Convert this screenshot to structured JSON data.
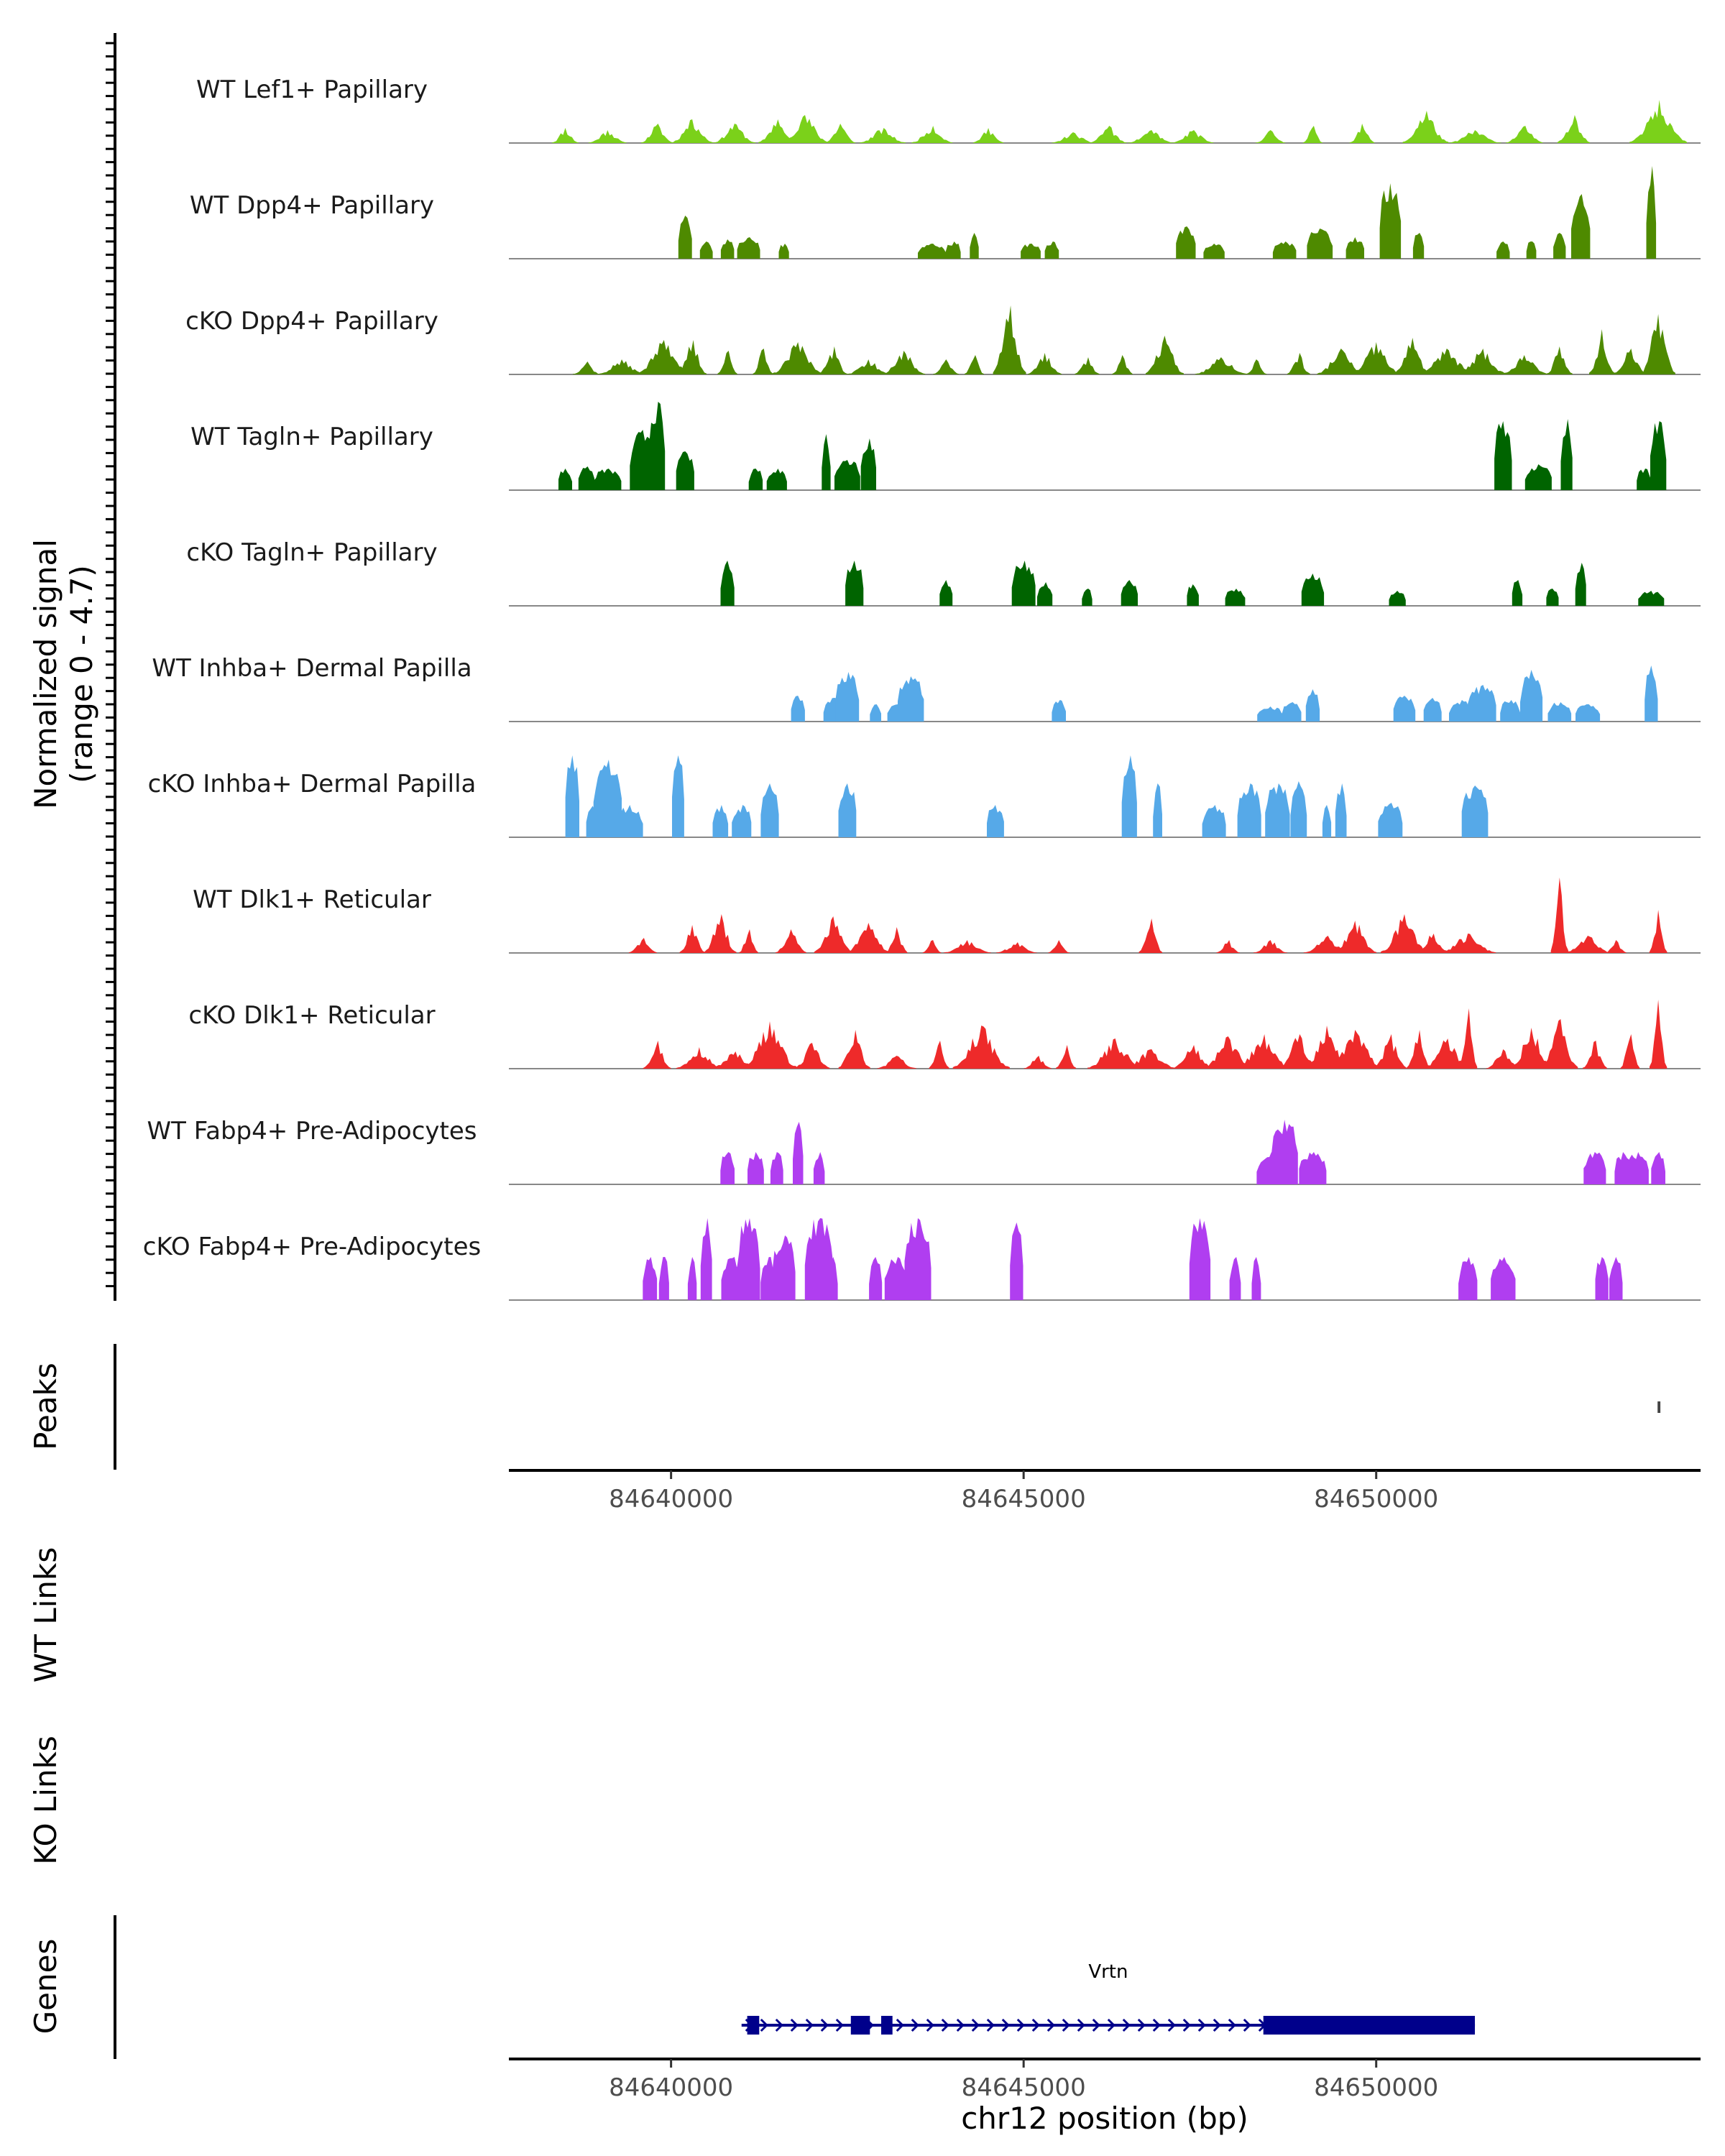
{
  "chart_data": {
    "type": "coverage",
    "signal_axis": {
      "title_line1": "Normalized signal",
      "title_line2": "(range 0 - 4.7)",
      "ylim": [
        0,
        4.7
      ]
    },
    "region": {
      "chromosome": "chr12",
      "xlim": [
        84637700,
        84654600
      ],
      "ticks": [
        84640000,
        84645000,
        84650000
      ],
      "tick_labels": [
        "84640000",
        "84645000",
        "84650000"
      ],
      "xlabel": "chr12 position (bp)"
    },
    "tracks": [
      {
        "label": "WT Lef1+ Papillary",
        "color": "#7bd11a",
        "seed": 11,
        "density": "dense",
        "peaks": [
          [
            84638500,
            0.7
          ],
          [
            84639100,
            0.6
          ],
          [
            84639800,
            0.9
          ],
          [
            84640300,
            1.1
          ],
          [
            84640900,
            0.9
          ],
          [
            84641500,
            1.1
          ],
          [
            84641900,
            1.3
          ],
          [
            84642400,
            0.9
          ],
          [
            84643000,
            0.7
          ],
          [
            84643700,
            0.8
          ],
          [
            84644500,
            0.7
          ],
          [
            84645700,
            0.5
          ],
          [
            84646200,
            0.8
          ],
          [
            84646800,
            0.6
          ],
          [
            84647400,
            0.6
          ],
          [
            84648500,
            0.6
          ],
          [
            84649100,
            0.8
          ],
          [
            84649800,
            0.9
          ],
          [
            84650700,
            1.5
          ],
          [
            84651400,
            0.6
          ],
          [
            84652100,
            0.8
          ],
          [
            84652800,
            1.3
          ],
          [
            84654000,
            2.0
          ]
        ]
      },
      {
        "label": "WT Dpp4+ Papillary",
        "color": "#4e8a00",
        "seed": 23,
        "density": "sparse",
        "peaks": [
          [
            84640200,
            2.0
          ],
          [
            84640500,
            0.8
          ],
          [
            84640800,
            0.9
          ],
          [
            84641100,
            1.0
          ],
          [
            84641600,
            0.7
          ],
          [
            84643700,
            0.7
          ],
          [
            84644000,
            0.8
          ],
          [
            84644300,
            1.2
          ],
          [
            84645100,
            0.7
          ],
          [
            84645400,
            0.8
          ],
          [
            84647300,
            1.5
          ],
          [
            84647700,
            0.7
          ],
          [
            84648700,
            0.8
          ],
          [
            84649200,
            1.4
          ],
          [
            84649700,
            1.0
          ],
          [
            84650200,
            3.5
          ],
          [
            84650600,
            1.2
          ],
          [
            84651800,
            0.8
          ],
          [
            84652200,
            0.8
          ],
          [
            84652600,
            1.2
          ],
          [
            84652900,
            3.0
          ],
          [
            84653900,
            4.3
          ]
        ]
      },
      {
        "label": "cKO Dpp4+ Papillary",
        "color": "#4e8a00",
        "seed": 37,
        "density": "dense",
        "peaks": [
          [
            84638800,
            0.6
          ],
          [
            84639300,
            0.7
          ],
          [
            84639900,
            1.6
          ],
          [
            84640300,
            1.6
          ],
          [
            84640800,
            1.1
          ],
          [
            84641300,
            1.2
          ],
          [
            84641800,
            1.5
          ],
          [
            84642300,
            1.3
          ],
          [
            84642800,
            0.7
          ],
          [
            84643300,
            1.1
          ],
          [
            84643900,
            0.7
          ],
          [
            84644300,
            0.9
          ],
          [
            84644800,
            3.2
          ],
          [
            84645300,
            1.0
          ],
          [
            84645900,
            0.8
          ],
          [
            84646400,
            0.9
          ],
          [
            84647000,
            1.8
          ],
          [
            84647800,
            0.8
          ],
          [
            84648300,
            0.7
          ],
          [
            84648900,
            1.0
          ],
          [
            84649500,
            1.2
          ],
          [
            84650000,
            1.5
          ],
          [
            84650500,
            1.7
          ],
          [
            84651000,
            1.2
          ],
          [
            84651500,
            1.2
          ],
          [
            84652100,
            0.9
          ],
          [
            84652600,
            1.3
          ],
          [
            84653200,
            2.1
          ],
          [
            84653600,
            1.2
          ],
          [
            84654000,
            2.8
          ]
        ]
      },
      {
        "label": "WT Tagln+ Papillary",
        "color": "#006400",
        "seed": 41,
        "density": "sparse",
        "peaks": [
          [
            84638500,
            1.0
          ],
          [
            84638800,
            1.1
          ],
          [
            84639100,
            1.0
          ],
          [
            84639600,
            2.8
          ],
          [
            84639800,
            4.1
          ],
          [
            84640200,
            1.8
          ],
          [
            84641200,
            1.0
          ],
          [
            84641500,
            1.0
          ],
          [
            84642200,
            2.6
          ],
          [
            84642500,
            1.4
          ],
          [
            84642800,
            2.4
          ],
          [
            84651800,
            3.2
          ],
          [
            84652300,
            1.2
          ],
          [
            84652700,
            3.3
          ],
          [
            84653800,
            1.0
          ],
          [
            84654000,
            3.2
          ]
        ]
      },
      {
        "label": "cKO Tagln+ Papillary",
        "color": "#006400",
        "seed": 53,
        "density": "sparse",
        "peaks": [
          [
            84640800,
            2.1
          ],
          [
            84642600,
            2.1
          ],
          [
            84643900,
            1.2
          ],
          [
            84645000,
            2.1
          ],
          [
            84645300,
            1.1
          ],
          [
            84645900,
            0.8
          ],
          [
            84646500,
            1.2
          ],
          [
            84647400,
            1.0
          ],
          [
            84648000,
            0.8
          ],
          [
            84649100,
            1.5
          ],
          [
            84650300,
            0.7
          ],
          [
            84652000,
            1.2
          ],
          [
            84652500,
            0.8
          ],
          [
            84652900,
            2.0
          ],
          [
            84653900,
            0.7
          ]
        ]
      },
      {
        "label": "WT Inhba+ Dermal Papilla",
        "color": "#56a9e8",
        "seed": 61,
        "density": "sparse",
        "peaks": [
          [
            84641800,
            1.2
          ],
          [
            84642300,
            1.1
          ],
          [
            84642500,
            2.3
          ],
          [
            84642900,
            0.8
          ],
          [
            84643200,
            0.8
          ],
          [
            84643400,
            2.1
          ],
          [
            84645500,
            1.0
          ],
          [
            84648500,
            0.7
          ],
          [
            84648800,
            0.9
          ],
          [
            84649100,
            1.5
          ],
          [
            84650400,
            1.2
          ],
          [
            84650800,
            1.1
          ],
          [
            84651200,
            1.0
          ],
          [
            84651500,
            1.7
          ],
          [
            84651900,
            1.0
          ],
          [
            84652200,
            2.4
          ],
          [
            84652600,
            0.9
          ],
          [
            84653000,
            0.8
          ],
          [
            84653900,
            2.6
          ]
        ]
      },
      {
        "label": "cKO Inhba+ Dermal Papilla",
        "color": "#56a9e8",
        "seed": 73,
        "density": "sparse",
        "peaks": [
          [
            84638600,
            3.8
          ],
          [
            84638950,
            1.5
          ],
          [
            84639100,
            3.6
          ],
          [
            84639400,
            1.5
          ],
          [
            84640100,
            3.8
          ],
          [
            84640700,
            1.5
          ],
          [
            84641000,
            1.5
          ],
          [
            84641400,
            2.5
          ],
          [
            84642500,
            2.5
          ],
          [
            84644600,
            1.5
          ],
          [
            84646500,
            3.8
          ],
          [
            84646900,
            2.5
          ],
          [
            84647700,
            1.5
          ],
          [
            84648200,
            2.5
          ],
          [
            84648600,
            2.5
          ],
          [
            84648900,
            2.6
          ],
          [
            84649300,
            1.5
          ],
          [
            84649500,
            2.5
          ],
          [
            84650200,
            1.6
          ],
          [
            84651400,
            2.4
          ]
        ]
      },
      {
        "label": "WT Dlk1+ Reticular",
        "color": "#ee2a2a",
        "seed": 83,
        "density": "dense",
        "peaks": [
          [
            84639600,
            0.7
          ],
          [
            84640300,
            1.3
          ],
          [
            84640700,
            1.8
          ],
          [
            84641100,
            1.1
          ],
          [
            84641700,
            1.1
          ],
          [
            84642300,
            1.7
          ],
          [
            84642800,
            1.4
          ],
          [
            84643200,
            1.2
          ],
          [
            84643700,
            0.6
          ],
          [
            84644200,
            0.6
          ],
          [
            84644900,
            0.5
          ],
          [
            84645500,
            0.6
          ],
          [
            84646800,
            1.6
          ],
          [
            84647900,
            0.6
          ],
          [
            84648500,
            0.6
          ],
          [
            84649300,
            0.8
          ],
          [
            84649700,
            1.5
          ],
          [
            84650400,
            1.8
          ],
          [
            84650800,
            0.9
          ],
          [
            84651300,
            0.9
          ],
          [
            84652600,
            3.5
          ],
          [
            84653000,
            0.8
          ],
          [
            84653400,
            0.6
          ],
          [
            84654000,
            2.0
          ]
        ]
      },
      {
        "label": "cKO Dlk1+ Reticular",
        "color": "#ee2a2a",
        "seed": 97,
        "density": "dense",
        "peaks": [
          [
            84639800,
            1.3
          ],
          [
            84640400,
            1.0
          ],
          [
            84640900,
            0.8
          ],
          [
            84641400,
            2.2
          ],
          [
            84642000,
            1.2
          ],
          [
            84642600,
            1.8
          ],
          [
            84643200,
            0.6
          ],
          [
            84643800,
            1.3
          ],
          [
            84644400,
            2.0
          ],
          [
            84645200,
            0.6
          ],
          [
            84645600,
            1.1
          ],
          [
            84646300,
            1.4
          ],
          [
            84646800,
            0.9
          ],
          [
            84647400,
            1.1
          ],
          [
            84647900,
            1.5
          ],
          [
            84648400,
            1.6
          ],
          [
            84648900,
            1.6
          ],
          [
            84649300,
            2.0
          ],
          [
            84649700,
            1.8
          ],
          [
            84650200,
            1.6
          ],
          [
            84650600,
            1.8
          ],
          [
            84651000,
            1.4
          ],
          [
            84651300,
            2.8
          ],
          [
            84651800,
            0.9
          ],
          [
            84652200,
            1.9
          ],
          [
            84652600,
            2.3
          ],
          [
            84653100,
            1.3
          ],
          [
            84653600,
            1.6
          ],
          [
            84654000,
            3.2
          ]
        ]
      },
      {
        "label": "WT Fabp4+ Pre-Adipocytes",
        "color": "#b03ef0",
        "seed": 101,
        "density": "sparse",
        "peaks": [
          [
            84640800,
            1.5
          ],
          [
            84641200,
            1.5
          ],
          [
            84641500,
            1.5
          ],
          [
            84641800,
            2.9
          ],
          [
            84642100,
            1.5
          ],
          [
            84648500,
            1.5
          ],
          [
            84648700,
            3.0
          ],
          [
            84649100,
            1.5
          ],
          [
            84653100,
            1.5
          ],
          [
            84653500,
            1.5
          ],
          [
            84653700,
            1.5
          ],
          [
            84654000,
            1.5
          ]
        ]
      },
      {
        "label": "cKO Fabp4+ Pre-Adipocytes",
        "color": "#b03ef0",
        "seed": 113,
        "density": "sparse",
        "peaks": [
          [
            84639700,
            2.0
          ],
          [
            84639900,
            2.0
          ],
          [
            84640300,
            2.0
          ],
          [
            84640500,
            3.8
          ],
          [
            84640900,
            2.0
          ],
          [
            84641100,
            3.8
          ],
          [
            84641400,
            2.0
          ],
          [
            84641600,
            3.0
          ],
          [
            84642100,
            3.8
          ],
          [
            84642300,
            2.0
          ],
          [
            84642900,
            2.0
          ],
          [
            84643200,
            2.0
          ],
          [
            84643500,
            3.8
          ],
          [
            84644900,
            3.6
          ],
          [
            84647500,
            3.8
          ],
          [
            84648000,
            2.0
          ],
          [
            84648300,
            2.0
          ],
          [
            84651300,
            2.0
          ],
          [
            84651800,
            2.0
          ],
          [
            84653200,
            2.0
          ],
          [
            84653400,
            2.0
          ]
        ]
      }
    ],
    "peaks_track": {
      "label": "Peaks",
      "ranges": [
        [
          84653990,
          84654030
        ]
      ]
    },
    "link_tracks": [
      {
        "label": "WT Links",
        "links": []
      },
      {
        "label": "KO Links",
        "links": []
      }
    ],
    "gene_track": {
      "label": "Genes",
      "color": "#00008b",
      "genes": [
        {
          "name": "Vrtn",
          "start": 84641000,
          "end": 84651400,
          "strand": "+",
          "exons": [
            [
              84641080,
              84641250
            ],
            [
              84642550,
              84642820
            ],
            [
              84642980,
              84643140
            ]
          ],
          "cds": [
            [
              84648400,
              84651400
            ]
          ]
        }
      ]
    }
  }
}
